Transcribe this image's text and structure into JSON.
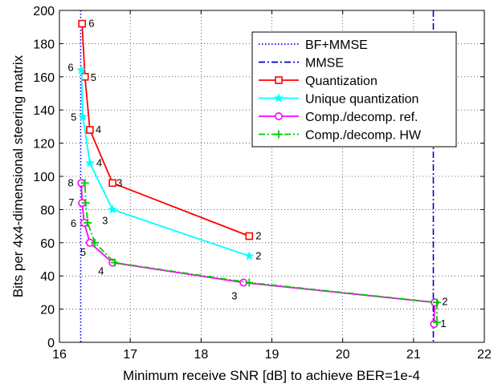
{
  "chart_data": {
    "type": "line",
    "xlabel": "Minimum receive SNR [dB] to achieve BER=1e-4",
    "ylabel": "Bits per 4x4-dimensional steering matrix",
    "xlim": [
      16,
      22
    ],
    "ylim": [
      0,
      200
    ],
    "xticks": [
      16,
      17,
      18,
      19,
      20,
      21,
      22
    ],
    "yticks": [
      0,
      20,
      40,
      60,
      80,
      100,
      120,
      140,
      160,
      180,
      200
    ],
    "grid": true,
    "legend_position": "top-right",
    "vlines": [
      {
        "name": "BF+MMSE",
        "x": 16.3,
        "color": "#0000ff",
        "style": "dotted"
      },
      {
        "name": "MMSE",
        "x": 21.28,
        "color": "#0000cc",
        "style": "dashdot"
      }
    ],
    "series": [
      {
        "name": "Quantization",
        "color": "#ff0000",
        "marker": "square",
        "style": "solid",
        "points": [
          {
            "x": 18.68,
            "y": 64,
            "label": "2"
          },
          {
            "x": 16.75,
            "y": 96,
            "label": "3"
          },
          {
            "x": 16.43,
            "y": 128,
            "label": "4"
          },
          {
            "x": 16.36,
            "y": 160,
            "label": "5"
          },
          {
            "x": 16.32,
            "y": 192,
            "label": "6"
          }
        ]
      },
      {
        "name": "Unique quantization",
        "color": "#00ffff",
        "marker": "star",
        "style": "solid",
        "points": [
          {
            "x": 18.68,
            "y": 52,
            "label": "2"
          },
          {
            "x": 16.75,
            "y": 80,
            "label": "3"
          },
          {
            "x": 16.43,
            "y": 108,
            "label": "4"
          },
          {
            "x": 16.33,
            "y": 136,
            "label": "5"
          },
          {
            "x": 16.31,
            "y": 164,
            "label": "6"
          }
        ]
      },
      {
        "name": "Comp./decomp. ref.",
        "color": "#ff00ff",
        "marker": "circle",
        "style": "solid",
        "points": [
          {
            "x": 21.29,
            "y": 11,
            "label": "1"
          },
          {
            "x": 21.3,
            "y": 24,
            "label": "2"
          },
          {
            "x": 18.6,
            "y": 36,
            "label": "3"
          },
          {
            "x": 16.75,
            "y": 48,
            "label": "4"
          },
          {
            "x": 16.43,
            "y": 60,
            "label": "5"
          },
          {
            "x": 16.35,
            "y": 72,
            "label": "6"
          },
          {
            "x": 16.32,
            "y": 84,
            "label": "7"
          },
          {
            "x": 16.31,
            "y": 96,
            "label": "8"
          }
        ]
      },
      {
        "name": "Comp./decomp. HW",
        "color": "#00cc00",
        "marker": "plus",
        "style": "dashdot",
        "points": [
          {
            "x": 21.33,
            "y": 12
          },
          {
            "x": 21.33,
            "y": 24
          },
          {
            "x": 18.68,
            "y": 36
          },
          {
            "x": 16.78,
            "y": 48
          },
          {
            "x": 16.5,
            "y": 60
          },
          {
            "x": 16.4,
            "y": 72
          },
          {
            "x": 16.37,
            "y": 84
          },
          {
            "x": 16.36,
            "y": 96
          }
        ]
      }
    ]
  }
}
